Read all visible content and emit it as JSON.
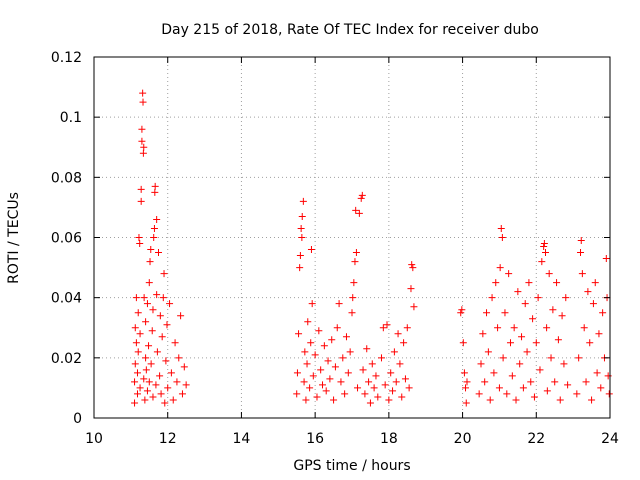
{
  "chart_data": {
    "type": "scatter",
    "title": "Day 215 of 2018, Rate Of TEC Index for receiver dubo",
    "xlabel": "GPS time / hours",
    "ylabel": "ROTI / TECUs",
    "xlim": [
      10,
      24
    ],
    "ylim": [
      0,
      0.12
    ],
    "x_ticks": [
      "10",
      "12",
      "14",
      "16",
      "18",
      "20",
      "22",
      "24"
    ],
    "y_ticks": [
      "0",
      "0.02",
      "0.04",
      "0.06",
      "0.08",
      "0.1",
      "0.12"
    ],
    "grid": true,
    "legend": "none",
    "marker": "plus",
    "color": "#ff0000",
    "series": [
      {
        "points": [
          [
            11.1,
            0.005
          ],
          [
            11.1,
            0.012
          ],
          [
            11.12,
            0.018
          ],
          [
            11.12,
            0.03
          ],
          [
            11.15,
            0.025
          ],
          [
            11.15,
            0.04
          ],
          [
            11.18,
            0.008
          ],
          [
            11.18,
            0.015
          ],
          [
            11.2,
            0.022
          ],
          [
            11.2,
            0.035
          ],
          [
            11.22,
            0.06
          ],
          [
            11.24,
            0.058
          ],
          [
            11.25,
            0.01
          ],
          [
            11.25,
            0.028
          ],
          [
            11.28,
            0.076
          ],
          [
            11.28,
            0.072
          ],
          [
            11.3,
            0.096
          ],
          [
            11.3,
            0.092
          ],
          [
            11.32,
            0.108
          ],
          [
            11.33,
            0.105
          ],
          [
            11.34,
            0.088
          ],
          [
            11.35,
            0.09
          ],
          [
            11.35,
            0.013
          ],
          [
            11.36,
            0.04
          ],
          [
            11.38,
            0.006
          ],
          [
            11.4,
            0.02
          ],
          [
            11.4,
            0.032
          ],
          [
            11.42,
            0.016
          ],
          [
            11.45,
            0.009
          ],
          [
            11.45,
            0.038
          ],
          [
            11.48,
            0.024
          ],
          [
            11.5,
            0.012
          ],
          [
            11.5,
            0.045
          ],
          [
            11.52,
            0.052
          ],
          [
            11.54,
            0.056
          ],
          [
            11.55,
            0.018
          ],
          [
            11.58,
            0.029
          ],
          [
            11.6,
            0.007
          ],
          [
            11.6,
            0.036
          ],
          [
            11.62,
            0.06
          ],
          [
            11.64,
            0.063
          ],
          [
            11.65,
            0.075
          ],
          [
            11.66,
            0.077
          ],
          [
            11.68,
            0.011
          ],
          [
            11.7,
            0.066
          ],
          [
            11.7,
            0.041
          ],
          [
            11.72,
            0.022
          ],
          [
            11.75,
            0.055
          ],
          [
            11.78,
            0.014
          ],
          [
            11.8,
            0.034
          ],
          [
            11.82,
            0.008
          ],
          [
            11.85,
            0.027
          ],
          [
            11.88,
            0.04
          ],
          [
            11.9,
            0.048
          ],
          [
            11.92,
            0.005
          ],
          [
            11.95,
            0.019
          ],
          [
            11.98,
            0.031
          ],
          [
            12.0,
            0.01
          ],
          [
            12.05,
            0.038
          ],
          [
            12.1,
            0.015
          ],
          [
            12.15,
            0.006
          ],
          [
            12.2,
            0.025
          ],
          [
            12.25,
            0.012
          ],
          [
            12.3,
            0.02
          ],
          [
            12.35,
            0.034
          ],
          [
            12.4,
            0.008
          ],
          [
            12.45,
            0.017
          ],
          [
            12.5,
            0.011
          ],
          [
            15.5,
            0.008
          ],
          [
            15.52,
            0.015
          ],
          [
            15.55,
            0.028
          ],
          [
            15.58,
            0.05
          ],
          [
            15.6,
            0.054
          ],
          [
            15.62,
            0.063
          ],
          [
            15.64,
            0.06
          ],
          [
            15.65,
            0.067
          ],
          [
            15.68,
            0.072
          ],
          [
            15.7,
            0.012
          ],
          [
            15.72,
            0.022
          ],
          [
            15.75,
            0.006
          ],
          [
            15.78,
            0.018
          ],
          [
            15.8,
            0.032
          ],
          [
            15.85,
            0.01
          ],
          [
            15.88,
            0.025
          ],
          [
            15.9,
            0.056
          ],
          [
            15.92,
            0.038
          ],
          [
            15.95,
            0.014
          ],
          [
            16.0,
            0.021
          ],
          [
            16.05,
            0.007
          ],
          [
            16.1,
            0.029
          ],
          [
            16.15,
            0.016
          ],
          [
            16.2,
            0.011
          ],
          [
            16.25,
            0.024
          ],
          [
            16.3,
            0.009
          ],
          [
            16.35,
            0.019
          ],
          [
            16.4,
            0.013
          ],
          [
            16.45,
            0.026
          ],
          [
            16.5,
            0.006
          ],
          [
            16.55,
            0.017
          ],
          [
            16.6,
            0.03
          ],
          [
            16.65,
            0.038
          ],
          [
            16.7,
            0.012
          ],
          [
            16.75,
            0.02
          ],
          [
            16.8,
            0.008
          ],
          [
            16.85,
            0.027
          ],
          [
            16.9,
            0.015
          ],
          [
            16.95,
            0.022
          ],
          [
            17.0,
            0.035
          ],
          [
            17.02,
            0.04
          ],
          [
            17.05,
            0.045
          ],
          [
            17.08,
            0.052
          ],
          [
            17.1,
            0.069
          ],
          [
            17.12,
            0.055
          ],
          [
            17.15,
            0.01
          ],
          [
            17.2,
            0.068
          ],
          [
            17.25,
            0.073
          ],
          [
            17.28,
            0.074
          ],
          [
            17.3,
            0.016
          ],
          [
            17.35,
            0.008
          ],
          [
            17.4,
            0.023
          ],
          [
            17.45,
            0.012
          ],
          [
            17.5,
            0.005
          ],
          [
            17.55,
            0.018
          ],
          [
            17.6,
            0.01
          ],
          [
            17.65,
            0.014
          ],
          [
            17.7,
            0.007
          ],
          [
            17.8,
            0.02
          ],
          [
            17.85,
            0.03
          ],
          [
            17.9,
            0.011
          ],
          [
            17.95,
            0.031
          ],
          [
            18.0,
            0.006
          ],
          [
            18.05,
            0.015
          ],
          [
            18.1,
            0.009
          ],
          [
            18.15,
            0.022
          ],
          [
            18.2,
            0.012
          ],
          [
            18.25,
            0.028
          ],
          [
            18.3,
            0.018
          ],
          [
            18.35,
            0.007
          ],
          [
            18.4,
            0.025
          ],
          [
            18.45,
            0.013
          ],
          [
            18.5,
            0.03
          ],
          [
            18.55,
            0.01
          ],
          [
            18.6,
            0.043
          ],
          [
            18.62,
            0.051
          ],
          [
            18.65,
            0.05
          ],
          [
            18.68,
            0.037
          ],
          [
            19.95,
            0.035
          ],
          [
            19.98,
            0.036
          ],
          [
            20.02,
            0.025
          ],
          [
            20.05,
            0.015
          ],
          [
            20.08,
            0.01
          ],
          [
            20.1,
            0.005
          ],
          [
            20.12,
            0.012
          ],
          [
            20.45,
            0.008
          ],
          [
            20.5,
            0.018
          ],
          [
            20.55,
            0.028
          ],
          [
            20.6,
            0.012
          ],
          [
            20.65,
            0.035
          ],
          [
            20.7,
            0.022
          ],
          [
            20.75,
            0.006
          ],
          [
            20.8,
            0.04
          ],
          [
            20.85,
            0.015
          ],
          [
            20.9,
            0.045
          ],
          [
            20.95,
            0.03
          ],
          [
            21.0,
            0.01
          ],
          [
            21.02,
            0.05
          ],
          [
            21.05,
            0.063
          ],
          [
            21.08,
            0.06
          ],
          [
            21.1,
            0.02
          ],
          [
            21.15,
            0.035
          ],
          [
            21.2,
            0.008
          ],
          [
            21.25,
            0.048
          ],
          [
            21.3,
            0.025
          ],
          [
            21.35,
            0.014
          ],
          [
            21.4,
            0.03
          ],
          [
            21.45,
            0.006
          ],
          [
            21.5,
            0.042
          ],
          [
            21.55,
            0.018
          ],
          [
            21.6,
            0.027
          ],
          [
            21.65,
            0.01
          ],
          [
            21.7,
            0.038
          ],
          [
            21.75,
            0.022
          ],
          [
            21.8,
            0.045
          ],
          [
            21.85,
            0.012
          ],
          [
            21.9,
            0.033
          ],
          [
            21.95,
            0.007
          ],
          [
            22.0,
            0.025
          ],
          [
            22.05,
            0.04
          ],
          [
            22.1,
            0.016
          ],
          [
            22.15,
            0.052
          ],
          [
            22.2,
            0.057
          ],
          [
            22.22,
            0.058
          ],
          [
            22.25,
            0.055
          ],
          [
            22.28,
            0.03
          ],
          [
            22.3,
            0.009
          ],
          [
            22.35,
            0.048
          ],
          [
            22.4,
            0.02
          ],
          [
            22.45,
            0.036
          ],
          [
            22.5,
            0.012
          ],
          [
            22.55,
            0.045
          ],
          [
            22.6,
            0.026
          ],
          [
            22.65,
            0.006
          ],
          [
            22.7,
            0.034
          ],
          [
            22.75,
            0.018
          ],
          [
            22.8,
            0.04
          ],
          [
            22.85,
            0.011
          ],
          [
            23.1,
            0.008
          ],
          [
            23.15,
            0.02
          ],
          [
            23.2,
            0.055
          ],
          [
            23.22,
            0.059
          ],
          [
            23.25,
            0.048
          ],
          [
            23.3,
            0.03
          ],
          [
            23.35,
            0.012
          ],
          [
            23.4,
            0.042
          ],
          [
            23.45,
            0.025
          ],
          [
            23.5,
            0.006
          ],
          [
            23.55,
            0.038
          ],
          [
            23.6,
            0.045
          ],
          [
            23.65,
            0.015
          ],
          [
            23.7,
            0.028
          ],
          [
            23.75,
            0.01
          ],
          [
            23.8,
            0.035
          ],
          [
            23.85,
            0.02
          ],
          [
            23.9,
            0.053
          ],
          [
            23.92,
            0.04
          ],
          [
            23.95,
            0.014
          ],
          [
            23.98,
            0.008
          ]
        ]
      }
    ]
  }
}
